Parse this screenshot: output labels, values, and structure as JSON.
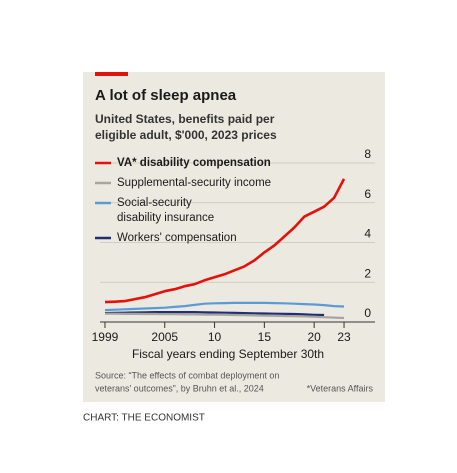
{
  "chart_data": {
    "type": "line",
    "title": "A lot of sleep apnea",
    "subtitle": [
      "United States, benefits paid per",
      "eligible adult, $'000, 2023 prices"
    ],
    "x_axis_label": "Fiscal years ending September 30th",
    "source": [
      "Source: “The effects of combat deployment on",
      "veterans’ outcomes”, by Bruhn et al., 2024"
    ],
    "footnote": "*Veterans Affairs",
    "credit": "CHART: THE ECONOMIST",
    "x": [
      1999,
      2000,
      2001,
      2002,
      2003,
      2004,
      2005,
      2006,
      2007,
      2008,
      2009,
      2010,
      2011,
      2012,
      2013,
      2014,
      2015,
      2016,
      2017,
      2018,
      2019,
      2020,
      2021,
      2022,
      2023
    ],
    "series": [
      {
        "name": "VA* disability compensation",
        "color": "#e3120b",
        "values": [
          1.0,
          1.02,
          1.05,
          1.15,
          1.25,
          1.4,
          1.55,
          1.65,
          1.8,
          1.9,
          2.1,
          2.25,
          2.4,
          2.6,
          2.8,
          3.1,
          3.5,
          3.85,
          4.3,
          4.75,
          5.3,
          5.55,
          5.8,
          6.25,
          7.2
        ]
      },
      {
        "name": "Supplemental-security income",
        "color": "#a8a59c",
        "values": [
          0.42,
          0.42,
          0.41,
          0.41,
          0.4,
          0.4,
          0.39,
          0.39,
          0.38,
          0.38,
          0.37,
          0.37,
          0.36,
          0.35,
          0.34,
          0.33,
          0.32,
          0.31,
          0.3,
          0.29,
          0.28,
          0.26,
          0.24,
          0.22,
          0.2
        ]
      },
      {
        "name": "Social-security disability insurance",
        "color": "#5b9bd5",
        "values": [
          0.6,
          0.62,
          0.64,
          0.66,
          0.68,
          0.7,
          0.72,
          0.76,
          0.8,
          0.86,
          0.92,
          0.94,
          0.95,
          0.96,
          0.96,
          0.96,
          0.96,
          0.95,
          0.94,
          0.92,
          0.9,
          0.88,
          0.85,
          0.8,
          0.78
        ]
      },
      {
        "name": "Workers' compensation",
        "color": "#1f2e7a",
        "values": [
          0.45,
          0.46,
          0.47,
          0.48,
          0.49,
          0.5,
          0.5,
          0.5,
          0.5,
          0.5,
          0.49,
          0.48,
          0.47,
          0.46,
          0.45,
          0.44,
          0.43,
          0.42,
          0.41,
          0.4,
          0.38,
          0.36,
          0.35,
          null,
          null
        ]
      }
    ],
    "xlim": [
      1998.5,
      2023.8
    ],
    "xticks": [
      1999,
      2005,
      {
        "value": 2010,
        "label": "10"
      },
      {
        "value": 2015,
        "label": "15"
      },
      {
        "value": 2020,
        "label": "20"
      },
      {
        "value": 2023,
        "label": "23"
      }
    ],
    "ylim": [
      -0.3,
      8
    ],
    "yticks": [
      0,
      2,
      4,
      6,
      8
    ],
    "grid": true
  }
}
